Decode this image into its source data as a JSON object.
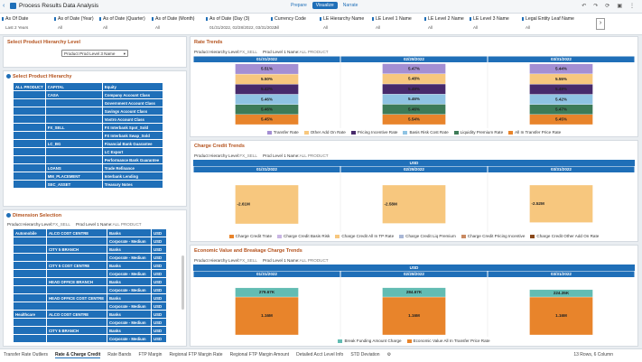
{
  "header": {
    "title": "Process Results Data Analysis",
    "modes": [
      "Prepare",
      "Visualize",
      "Narrate"
    ],
    "active_mode": 1
  },
  "filters": [
    {
      "label": "As Of Date",
      "value": "Last 2 Years"
    },
    {
      "label": "As of Date (Year)",
      "value": "All"
    },
    {
      "label": "As of Date (Quarter)",
      "value": "All"
    },
    {
      "label": "As of Date (Month)",
      "value": "All"
    },
    {
      "label": "As of Date (Day (3)",
      "value": "01/31/2022, 02/28/2022, 03/31/2022"
    },
    {
      "label": "Currency Code",
      "value": "All"
    },
    {
      "label": "LE Hierarchy Name",
      "value": "All"
    },
    {
      "label": "LE Level 1 Name",
      "value": "All"
    },
    {
      "label": "LE Level 2 Name",
      "value": "All"
    },
    {
      "label": "LE Level 3 Name",
      "value": "All"
    },
    {
      "label": "Legal Entity Leaf Name",
      "value": "All"
    }
  ],
  "hierarchy_level": {
    "title": "Select Product Hierarchy Level",
    "selected": "Product Prod Level 3 Name"
  },
  "product_hierarchy": {
    "title": "Select Product Hierarchy",
    "rows": [
      [
        "ALL PRODUCT",
        "CAPITAL",
        "Equity"
      ],
      [
        null,
        "CASA",
        "Company Account Class"
      ],
      [
        null,
        null,
        "Government Account Class"
      ],
      [
        null,
        null,
        "Savings Account Class"
      ],
      [
        null,
        null,
        "Vostro Account Class"
      ],
      [
        null,
        "FX_SELL",
        "FX Interbank Spot_Sold"
      ],
      [
        null,
        null,
        "FX Interbank Swap_Sold"
      ],
      [
        null,
        "LC_BG",
        "Financial Bank Guarantee"
      ],
      [
        null,
        null,
        "LC Export"
      ],
      [
        null,
        null,
        "Performance Bank Guarantee"
      ],
      [
        null,
        "LOANS",
        "Trade Refinance"
      ],
      [
        null,
        "MM_PLACEMENT",
        "Interbank Lending"
      ],
      [
        null,
        "SEC_ASSET",
        "Treasury Notes"
      ]
    ]
  },
  "dimension_selection": {
    "title": "Dimension Selection",
    "context": [
      {
        "label": "Product Hierarchy Level:",
        "value": "FX_SELL"
      },
      {
        "label": "Prod Level 1 Name:",
        "value": "ALL PRODUCT"
      }
    ],
    "rows": [
      [
        "Automobile",
        "ALCO COST CENTRE",
        "Banks",
        "USD"
      ],
      [
        null,
        null,
        "Corporate - Medium",
        "USD"
      ],
      [
        null,
        "CITY 5 BRANCH",
        "Banks",
        "USD"
      ],
      [
        null,
        null,
        "Corporate - Medium",
        "USD"
      ],
      [
        null,
        "CITY 5 COST CENTRE",
        "Banks",
        "USD"
      ],
      [
        null,
        null,
        "Corporate - Medium",
        "USD"
      ],
      [
        null,
        "HEAD OFFICE BRANCH",
        "Banks",
        "USD"
      ],
      [
        null,
        null,
        "Corporate - Medium",
        "USD"
      ],
      [
        null,
        "HEAD OFFICE COST CENTRE",
        "Banks",
        "USD"
      ],
      [
        null,
        null,
        "Corporate - Medium",
        "USD"
      ],
      [
        "Healthcare",
        "ALCO COST CENTRE",
        "Banks",
        "USD"
      ],
      [
        null,
        null,
        "Corporate - Medium",
        "USD"
      ],
      [
        null,
        "CITY 5 BRANCH",
        "Banks",
        "USD"
      ],
      [
        null,
        null,
        "Corporate - Medium",
        "USD"
      ]
    ]
  },
  "rate_trends": {
    "title": "Rate Trends",
    "context": [
      {
        "label": "Product Hierarchy Level:",
        "value": "FX_SELL"
      },
      {
        "label": "Prod Level 1 Name:",
        "value": "ALL PRODUCT"
      }
    ],
    "dates": [
      "01/31/2022",
      "02/28/2022",
      "03/31/2022"
    ],
    "series": [
      {
        "name": "Transfer Rate",
        "color": "#a48fd3",
        "values": [
          {
            "value": 5.51,
            "label": "5.51%"
          },
          {
            "value": 5.47,
            "label": "5.47%"
          },
          {
            "value": 5.44,
            "label": "5.44%"
          }
        ]
      },
      {
        "name": "Other Add On Rate",
        "color": "#f7c77e",
        "values": [
          {
            "value": 5.5,
            "label": "5.50%"
          },
          {
            "value": 5.48,
            "label": "5.48%"
          },
          {
            "value": 5.55,
            "label": "5.55%"
          }
        ]
      },
      {
        "name": "Pricing Incentive Rate",
        "color": "#472a6b",
        "values": [
          {
            "value": 5.42,
            "label": "5.42%"
          },
          {
            "value": 5.49,
            "label": "5.49%"
          },
          {
            "value": 5.49,
            "label": "5.49%"
          }
        ]
      },
      {
        "name": "Basis Risk Cost Rate",
        "color": "#8fc3e3",
        "values": [
          {
            "value": 5.46,
            "label": "5.46%"
          },
          {
            "value": 5.46,
            "label": "5.46%"
          },
          {
            "value": 5.42,
            "label": "5.42%"
          }
        ]
      },
      {
        "name": "Liquidity Premium Rate",
        "color": "#3d7b58",
        "values": [
          {
            "value": 5.46,
            "label": "5.46%"
          },
          {
            "value": 5.46,
            "label": "5.46%"
          },
          {
            "value": 5.47,
            "label": "5.47%"
          }
        ]
      },
      {
        "name": "All In Transfer Price Rate",
        "color": "#e8842b",
        "values": [
          {
            "value": 5.45,
            "label": "5.45%"
          },
          {
            "value": 5.54,
            "label": "5.54%"
          },
          {
            "value": 5.45,
            "label": "5.45%"
          }
        ]
      }
    ]
  },
  "charge_credit_trends": {
    "title": "Charge Credit Trends",
    "context": [
      {
        "label": "Product Hierarchy Level:",
        "value": "FX_SELL"
      },
      {
        "label": "Prod Level 1 Name:",
        "value": "ALL PRODUCT"
      }
    ],
    "currency": "USD",
    "dates": [
      "01/31/2022",
      "02/28/2022",
      "03/31/2022"
    ],
    "series": [
      {
        "name": "Charge Credit Trate",
        "color": "#e8842b"
      },
      {
        "name": "Charge Credit Basis Risk",
        "color": "#c9b6e4"
      },
      {
        "name": "Charge Credit All In TP Rate",
        "color": "#f7c77e",
        "values": [
          {
            "value": -2610000,
            "label": "-2.61M"
          },
          {
            "value": -2580000,
            "label": "-2.58M"
          },
          {
            "value": -2520000,
            "label": "-2.52M"
          }
        ]
      },
      {
        "name": "Charge Credit Liq Premium",
        "color": "#a9b7d6"
      },
      {
        "name": "Charge Credit Pricing Incentive",
        "color": "#c98a62"
      },
      {
        "name": "Charge Credit Other Add On Rate",
        "color": "#8a4a1c"
      }
    ]
  },
  "economic_value_trends": {
    "title": "Economic Value and Breakage Charge Trends",
    "context": [
      {
        "label": "Product Hierarchy Level:",
        "value": "FX_SELL"
      },
      {
        "label": "Prod Level 1 Name:",
        "value": "ALL PRODUCT"
      }
    ],
    "currency": "USD",
    "dates": [
      "01/31/2022",
      "02/28/2022",
      "03/31/2022"
    ],
    "series": [
      {
        "name": "Break Funding Amount Charge",
        "color": "#62bcb3",
        "values": [
          {
            "value": 279670,
            "label": "279.67K"
          },
          {
            "value": 284670,
            "label": "284.67K"
          },
          {
            "value": 224350,
            "label": "224.35K"
          }
        ]
      },
      {
        "name": "Economic Value All In Transfer Price Rate",
        "color": "#e8842b",
        "values": [
          {
            "value": 1160000,
            "label": "1.16M"
          },
          {
            "value": 1160000,
            "label": "1.16M"
          },
          {
            "value": 1160000,
            "label": "1.16M"
          }
        ]
      }
    ]
  },
  "tabs": [
    "Transfer Rate Outliers",
    "Rate & Charge Credit",
    "Rate Bands",
    "FTP Margin",
    "Regional FTP Margin Rate",
    "Regional FTP Margin Amount",
    "Detailed Acct Level Info",
    "STD Deviation"
  ],
  "active_tab": 1,
  "status": "13 Rows, 6 Column"
}
